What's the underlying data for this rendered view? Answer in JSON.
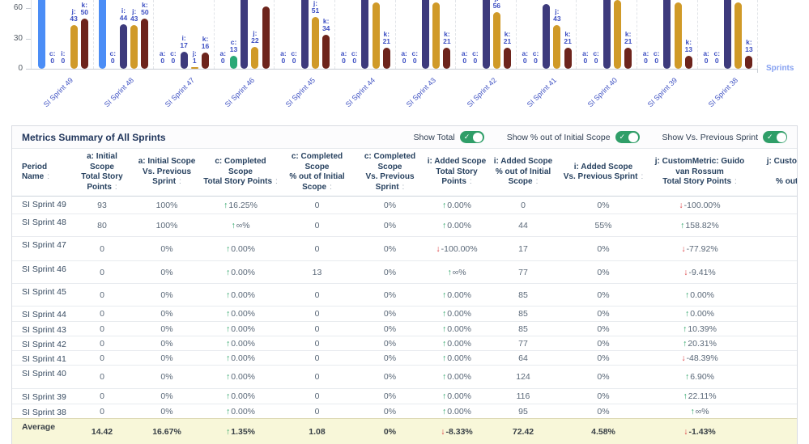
{
  "chart_data": {
    "type": "bar",
    "title": "",
    "xlabel": "Sprints",
    "ylabel": "",
    "y_ticks": [
      60,
      30,
      0
    ],
    "ylim_visible": [
      0,
      70
    ],
    "grid": "dashed-vertical-group-separators",
    "legend_position": "none",
    "metric_colors": {
      "a": "#4b8df6",
      "c": "#2aa876",
      "i": "#3d3a7c",
      "j": "#d09a28",
      "k": "#6d241c"
    },
    "groups": [
      {
        "name": "SI Sprint 49",
        "bars": [
          {
            "m": "a",
            "v": 93,
            "label": false
          },
          {
            "m": "c",
            "v": 0,
            "label": true
          },
          {
            "m": "i",
            "v": 0,
            "label": true
          },
          {
            "m": "j",
            "v": 43,
            "label": true
          },
          {
            "m": "k",
            "v": 50,
            "label": true
          }
        ]
      },
      {
        "name": "SI Sprint 48",
        "bars": [
          {
            "m": "a",
            "v": 80,
            "label": false
          },
          {
            "m": "c",
            "v": 0,
            "label": true
          },
          {
            "m": "i",
            "v": 44,
            "label": true
          },
          {
            "m": "j",
            "v": 43,
            "label": true
          },
          {
            "m": "k",
            "v": 50,
            "label": true
          }
        ]
      },
      {
        "name": "SI Sprint 47",
        "bars": [
          {
            "m": "a",
            "v": 0,
            "label": true
          },
          {
            "m": "c",
            "v": 0,
            "label": true
          },
          {
            "m": "i",
            "v": 17,
            "label": true
          },
          {
            "m": "j",
            "v": 1,
            "label": true
          },
          {
            "m": "k",
            "v": 16,
            "label": true
          }
        ]
      },
      {
        "name": "SI Sprint 46",
        "bars": [
          {
            "m": "a",
            "v": 0,
            "label": true
          },
          {
            "m": "c",
            "v": 13,
            "label": true
          },
          {
            "m": "i",
            "v": 77,
            "label": false
          },
          {
            "m": "j",
            "v": 22,
            "label": true
          },
          {
            "m": "k",
            "v": 62,
            "label": false
          }
        ]
      },
      {
        "name": "SI Sprint 45",
        "bars": [
          {
            "m": "a",
            "v": 0,
            "label": true
          },
          {
            "m": "c",
            "v": 0,
            "label": true
          },
          {
            "m": "i",
            "v": 85,
            "label": false
          },
          {
            "m": "j",
            "v": 51,
            "label": true
          },
          {
            "m": "k",
            "v": 34,
            "label": true
          }
        ]
      },
      {
        "name": "SI Sprint 44",
        "bars": [
          {
            "m": "a",
            "v": 0,
            "label": true
          },
          {
            "m": "c",
            "v": 0,
            "label": true
          },
          {
            "m": "i",
            "v": 85,
            "label": false
          },
          {
            "m": "j",
            "v": 66,
            "label": false
          },
          {
            "m": "k",
            "v": 21,
            "label": true
          }
        ]
      },
      {
        "name": "SI Sprint 43",
        "bars": [
          {
            "m": "a",
            "v": 0,
            "label": true
          },
          {
            "m": "c",
            "v": 0,
            "label": true
          },
          {
            "m": "i",
            "v": 85,
            "label": false
          },
          {
            "m": "j",
            "v": 66,
            "label": false
          },
          {
            "m": "k",
            "v": 21,
            "label": true
          }
        ]
      },
      {
        "name": "SI Sprint 42",
        "bars": [
          {
            "m": "a",
            "v": 0,
            "label": true
          },
          {
            "m": "c",
            "v": 0,
            "label": true
          },
          {
            "m": "i",
            "v": 77,
            "label": false
          },
          {
            "m": "j",
            "v": 56,
            "label": true
          },
          {
            "m": "k",
            "v": 21,
            "label": true
          }
        ]
      },
      {
        "name": "SI Sprint 41",
        "bars": [
          {
            "m": "a",
            "v": 0,
            "label": true
          },
          {
            "m": "c",
            "v": 0,
            "label": true
          },
          {
            "m": "i",
            "v": 64,
            "label": false
          },
          {
            "m": "j",
            "v": 43,
            "label": true
          },
          {
            "m": "k",
            "v": 21,
            "label": true
          }
        ]
      },
      {
        "name": "SI Sprint 40",
        "bars": [
          {
            "m": "a",
            "v": 0,
            "label": true
          },
          {
            "m": "c",
            "v": 0,
            "label": true
          },
          {
            "m": "i",
            "v": 124,
            "label": false
          },
          {
            "m": "j",
            "v": 68,
            "label": false
          },
          {
            "m": "k",
            "v": 21,
            "label": true
          }
        ]
      },
      {
        "name": "SI Sprint 39",
        "bars": [
          {
            "m": "a",
            "v": 0,
            "label": true
          },
          {
            "m": "c",
            "v": 0,
            "label": true
          },
          {
            "m": "i",
            "v": 116,
            "label": false
          },
          {
            "m": "j",
            "v": 66,
            "label": false
          },
          {
            "m": "k",
            "v": 13,
            "label": true
          }
        ]
      },
      {
        "name": "SI Sprint 38",
        "bars": [
          {
            "m": "a",
            "v": 0,
            "label": true
          },
          {
            "m": "c",
            "v": 0,
            "label": true
          },
          {
            "m": "i",
            "v": 95,
            "label": false
          },
          {
            "m": "j",
            "v": 66,
            "label": false
          },
          {
            "m": "k",
            "v": 13,
            "label": true
          }
        ]
      }
    ]
  },
  "panel": {
    "title": "Metrics Summary of All Sprints",
    "toggles": [
      {
        "label": "Show Total",
        "on": true
      },
      {
        "label": "Show % out of Initial Scope",
        "on": true
      },
      {
        "label": "Show Vs. Previous Sprint",
        "on": true
      }
    ]
  },
  "table": {
    "columns": [
      {
        "line1": "Period Name",
        "line2": ""
      },
      {
        "line1": "a: Initial Scope",
        "line2": "Total Story Points"
      },
      {
        "line1": "a: Initial Scope",
        "line2": "Vs. Previous Sprint"
      },
      {
        "line1": "c: Completed Scope",
        "line2": "Total Story Points"
      },
      {
        "line1": "c: Completed Scope",
        "line2": "% out of Initial Scope"
      },
      {
        "line1": "c: Completed Scope",
        "line2": "Vs. Previous Sprint"
      },
      {
        "line1": "i: Added Scope",
        "line2": "Total Story Points"
      },
      {
        "line1": "i: Added Scope",
        "line2": "% out of Initial Scope"
      },
      {
        "line1": "i: Added Scope",
        "line2": "Vs. Previous Sprint"
      },
      {
        "line1": "j: CustomMetric: Guido van Rossum",
        "line2": "Total Story Points"
      },
      {
        "line1": "j: CustomMetric: Guido van Rossum",
        "line2": "% out of Initial Scope"
      }
    ],
    "rows": [
      {
        "name": "SI Sprint 49",
        "cells": [
          "93",
          "100%",
          "↑16.25%",
          "0",
          "0%",
          "↑0.00%",
          "0",
          "0%",
          "↓-100.00%",
          ""
        ]
      },
      {
        "name": "SI Sprint 48",
        "cells": [
          "80",
          "100%",
          "↑∞%",
          "0",
          "0%",
          "↑0.00%",
          "44",
          "55%",
          "↑158.82%",
          ""
        ]
      },
      {
        "name": "SI Sprint 47",
        "cells": [
          "0",
          "0%",
          "↑0.00%",
          "0",
          "0%",
          "↓-100.00%",
          "17",
          "0%",
          "↓-77.92%",
          ""
        ]
      },
      {
        "name": "SI Sprint 46",
        "cells": [
          "0",
          "0%",
          "↑0.00%",
          "13",
          "0%",
          "↑∞%",
          "77",
          "0%",
          "↓-9.41%",
          ""
        ]
      },
      {
        "name": "SI Sprint 45",
        "cells": [
          "0",
          "0%",
          "↑0.00%",
          "0",
          "0%",
          "↑0.00%",
          "85",
          "0%",
          "↑0.00%",
          ""
        ]
      },
      {
        "name": "SI Sprint 44",
        "cells": [
          "0",
          "0%",
          "↑0.00%",
          "0",
          "0%",
          "↑0.00%",
          "85",
          "0%",
          "↑0.00%",
          ""
        ]
      },
      {
        "name": "SI Sprint 43",
        "cells": [
          "0",
          "0%",
          "↑0.00%",
          "0",
          "0%",
          "↑0.00%",
          "85",
          "0%",
          "↑10.39%",
          ""
        ]
      },
      {
        "name": "SI Sprint 42",
        "cells": [
          "0",
          "0%",
          "↑0.00%",
          "0",
          "0%",
          "↑0.00%",
          "77",
          "0%",
          "↑20.31%",
          ""
        ]
      },
      {
        "name": "SI Sprint 41",
        "cells": [
          "0",
          "0%",
          "↑0.00%",
          "0",
          "0%",
          "↑0.00%",
          "64",
          "0%",
          "↓-48.39%",
          ""
        ]
      },
      {
        "name": "SI Sprint 40",
        "cells": [
          "0",
          "0%",
          "↑0.00%",
          "0",
          "0%",
          "↑0.00%",
          "124",
          "0%",
          "↑6.90%",
          ""
        ]
      },
      {
        "name": "SI Sprint 39",
        "cells": [
          "0",
          "0%",
          "↑0.00%",
          "0",
          "0%",
          "↑0.00%",
          "116",
          "0%",
          "↑22.11%",
          ""
        ]
      },
      {
        "name": "SI Sprint 38",
        "cells": [
          "0",
          "0%",
          "↑0.00%",
          "0",
          "0%",
          "↑0.00%",
          "95",
          "0%",
          "↑∞%",
          ""
        ]
      }
    ],
    "average": {
      "name": "Average",
      "cells": [
        "14.42",
        "16.67%",
        "↑1.35%",
        "1.08",
        "0%",
        "↓-8.33%",
        "72.42",
        "4.58%",
        "↓-1.43%",
        ""
      ]
    }
  }
}
